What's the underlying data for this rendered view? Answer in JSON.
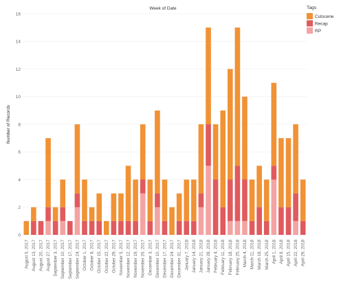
{
  "chart_data": {
    "type": "bar",
    "stacked": true,
    "title": "Week of Date",
    "xlabel": "",
    "ylabel": "Number of Records",
    "ylim": [
      0,
      16
    ],
    "yticks": [
      0,
      2,
      4,
      6,
      8,
      10,
      12,
      14,
      16
    ],
    "grid": true,
    "legend_title": "Tags",
    "legend_position": "top-right",
    "categories": [
      "August 6, 2017",
      "August 13, 2017",
      "August 20, 2017",
      "August 27, 2017",
      "September 3, 2017",
      "September 10, 2017",
      "September 17, 2017",
      "September 24, 2017",
      "October 1, 2017",
      "October 8, 2017",
      "October 15, 2017",
      "October 22, 2017",
      "October 29, 2017",
      "November 5, 2017",
      "November 12, 2017",
      "November 19, 2017",
      "November 26, 2017",
      "December 3, 2017",
      "December 10, 2017",
      "December 17, 2017",
      "December 24, 2017",
      "December 31, 2017",
      "January 7, 2018",
      "January 14, 2018",
      "January 21, 2018",
      "January 28, 2018",
      "February 4, 2018",
      "February 11, 2018",
      "February 18, 2018",
      "February 25, 2018",
      "March 4, 2018",
      "March 11, 2018",
      "March 18, 2018",
      "March 25, 2018",
      "April 1, 2018",
      "April 8, 2018",
      "April 15, 2018",
      "April 22, 2018",
      "April 29, 2018"
    ],
    "series": [
      {
        "name": "RP",
        "color": "#f4a3a3",
        "values": [
          0,
          0,
          0,
          1,
          0,
          1,
          0,
          2,
          0,
          0,
          0,
          0,
          0,
          0,
          0,
          0,
          3,
          0,
          2,
          0,
          0,
          0,
          0,
          0,
          2,
          5,
          0,
          0,
          1,
          1,
          1,
          0,
          0,
          0,
          4,
          0,
          0,
          1,
          0
        ]
      },
      {
        "name": "Recap",
        "color": "#e05a5e",
        "values": [
          0,
          1,
          1,
          1,
          1,
          1,
          1,
          1,
          1,
          1,
          1,
          0,
          1,
          1,
          1,
          1,
          1,
          1,
          1,
          1,
          0,
          1,
          1,
          1,
          1,
          3,
          4,
          2,
          3,
          4,
          3,
          1,
          2,
          1,
          1,
          2,
          2,
          2,
          1
        ]
      },
      {
        "name": "Cutscene",
        "color": "#f09235",
        "values": [
          1,
          1,
          0,
          5,
          1,
          2,
          0,
          5,
          3,
          1,
          2,
          1,
          2,
          2,
          4,
          3,
          4,
          3,
          6,
          3,
          2,
          2,
          3,
          3,
          5,
          7,
          4,
          7,
          8,
          10,
          6,
          3,
          3,
          3,
          6,
          5,
          5,
          5,
          3
        ]
      }
    ]
  }
}
